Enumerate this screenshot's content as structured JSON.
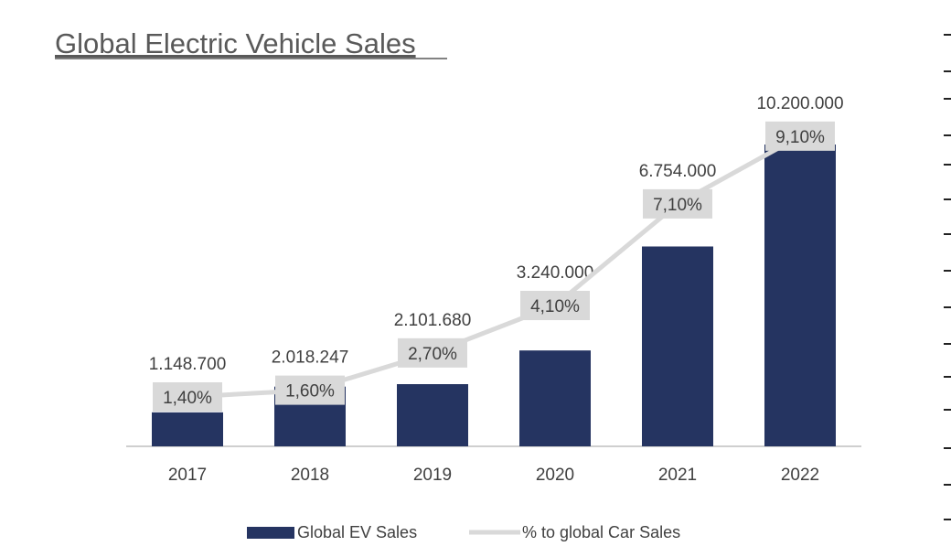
{
  "chart_data": {
    "type": "bar",
    "title": "Global Electric Vehicle Sales",
    "categories": [
      "2017",
      "2018",
      "2019",
      "2020",
      "2021",
      "2022"
    ],
    "series": [
      {
        "name": "Global EV Sales",
        "type": "bar",
        "values": [
          1148700,
          2018247,
          2101680,
          3240000,
          6754000,
          10200000
        ],
        "value_labels": [
          "1.148.700",
          "2.018.247",
          "2.101.680",
          "3.240.000",
          "6.754.000",
          "10.200.000"
        ],
        "color": "#253461"
      },
      {
        "name": "% to global Car Sales",
        "type": "line",
        "values": [
          1.4,
          1.6,
          2.7,
          4.1,
          7.1,
          9.1
        ],
        "value_labels": [
          "1,40%",
          "1,60%",
          "2,70%",
          "4,10%",
          "7,10%",
          "9,10%"
        ],
        "color": "#d9d9d9"
      }
    ],
    "legend": {
      "position": "bottom",
      "items": [
        "Global EV Sales",
        "% to global Car Sales"
      ]
    },
    "grid": false
  }
}
